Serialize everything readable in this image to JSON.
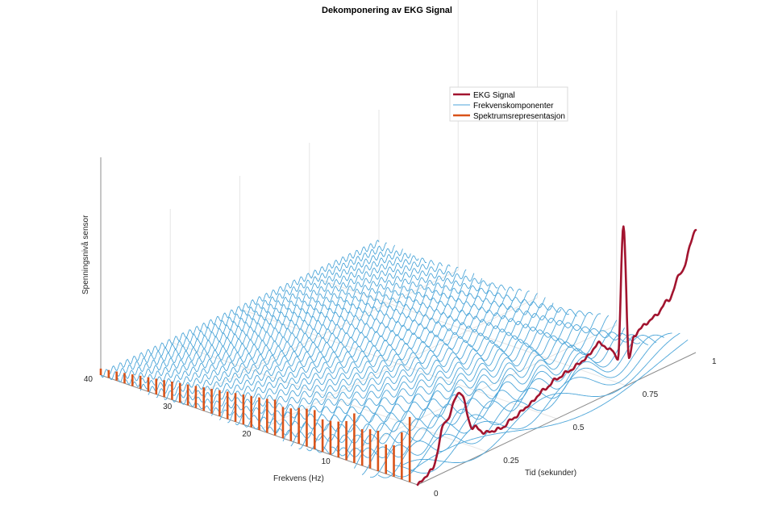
{
  "chart_data": {
    "type": "line",
    "title": "Dekomponering av EKG Signal",
    "xlabel": "Tid (sekunder)",
    "ylabel": "Frekvens (Hz)",
    "zlabel": "Spenningsnivå sensor",
    "x_ticks": [
      "0",
      "0.25",
      "0.5",
      "0.75",
      "1"
    ],
    "y_ticks": [
      "10",
      "20",
      "30",
      "40"
    ],
    "xlim": [
      0,
      1
    ],
    "ylim": [
      0,
      40
    ],
    "grid": true,
    "legend_position": "top-right",
    "colors": {
      "ekg": "#a2142f",
      "frequency": "#4da6d9",
      "spectrum": "#d95319"
    },
    "series": [
      {
        "name": "EKG Signal",
        "x": [
          0,
          0.05,
          0.1,
          0.15,
          0.2,
          0.25,
          0.3,
          0.35,
          0.4,
          0.45,
          0.5,
          0.55,
          0.6,
          0.65,
          0.7,
          0.72,
          0.74,
          0.76,
          0.78,
          0.8,
          0.85,
          0.9,
          0.95,
          1.0
        ],
        "y": [
          0.0,
          0.1,
          0.65,
          0.95,
          0.4,
          0.25,
          0.22,
          0.28,
          0.35,
          0.45,
          0.52,
          0.55,
          0.6,
          0.72,
          0.55,
          0.4,
          2.1,
          0.35,
          0.6,
          0.66,
          0.72,
          0.85,
          1.15,
          1.6
        ]
      },
      {
        "name": "Frekvenskomponenter",
        "frequencies_hz": [
          1,
          2,
          3,
          4,
          5,
          6,
          7,
          8,
          9,
          10,
          11,
          12,
          13,
          14,
          15,
          16,
          17,
          18,
          19,
          20,
          21,
          22,
          23,
          24,
          25,
          26,
          27,
          28,
          29,
          30,
          31,
          32,
          33,
          34,
          35,
          36,
          37,
          38,
          39,
          40
        ]
      },
      {
        "name": "Spektrumsrepresentasjon",
        "frequencies_hz": [
          1,
          2,
          3,
          4,
          5,
          6,
          7,
          8,
          9,
          10,
          11,
          12,
          13,
          14,
          15,
          16,
          17,
          18,
          19,
          20,
          21,
          22,
          23,
          24,
          25,
          26,
          27,
          28,
          29,
          30,
          31,
          32,
          33,
          34,
          35,
          36,
          37,
          38,
          39,
          40
        ],
        "amplitudes": [
          1.0,
          0.72,
          0.48,
          0.45,
          0.62,
          0.6,
          0.56,
          0.76,
          0.6,
          0.55,
          0.52,
          0.5,
          0.6,
          0.58,
          0.55,
          0.5,
          0.48,
          0.55,
          0.52,
          0.5,
          0.48,
          0.46,
          0.44,
          0.42,
          0.4,
          0.38,
          0.36,
          0.34,
          0.32,
          0.3,
          0.28,
          0.26,
          0.24,
          0.22,
          0.2,
          0.18,
          0.16,
          0.14,
          0.12,
          0.1
        ]
      }
    ]
  }
}
